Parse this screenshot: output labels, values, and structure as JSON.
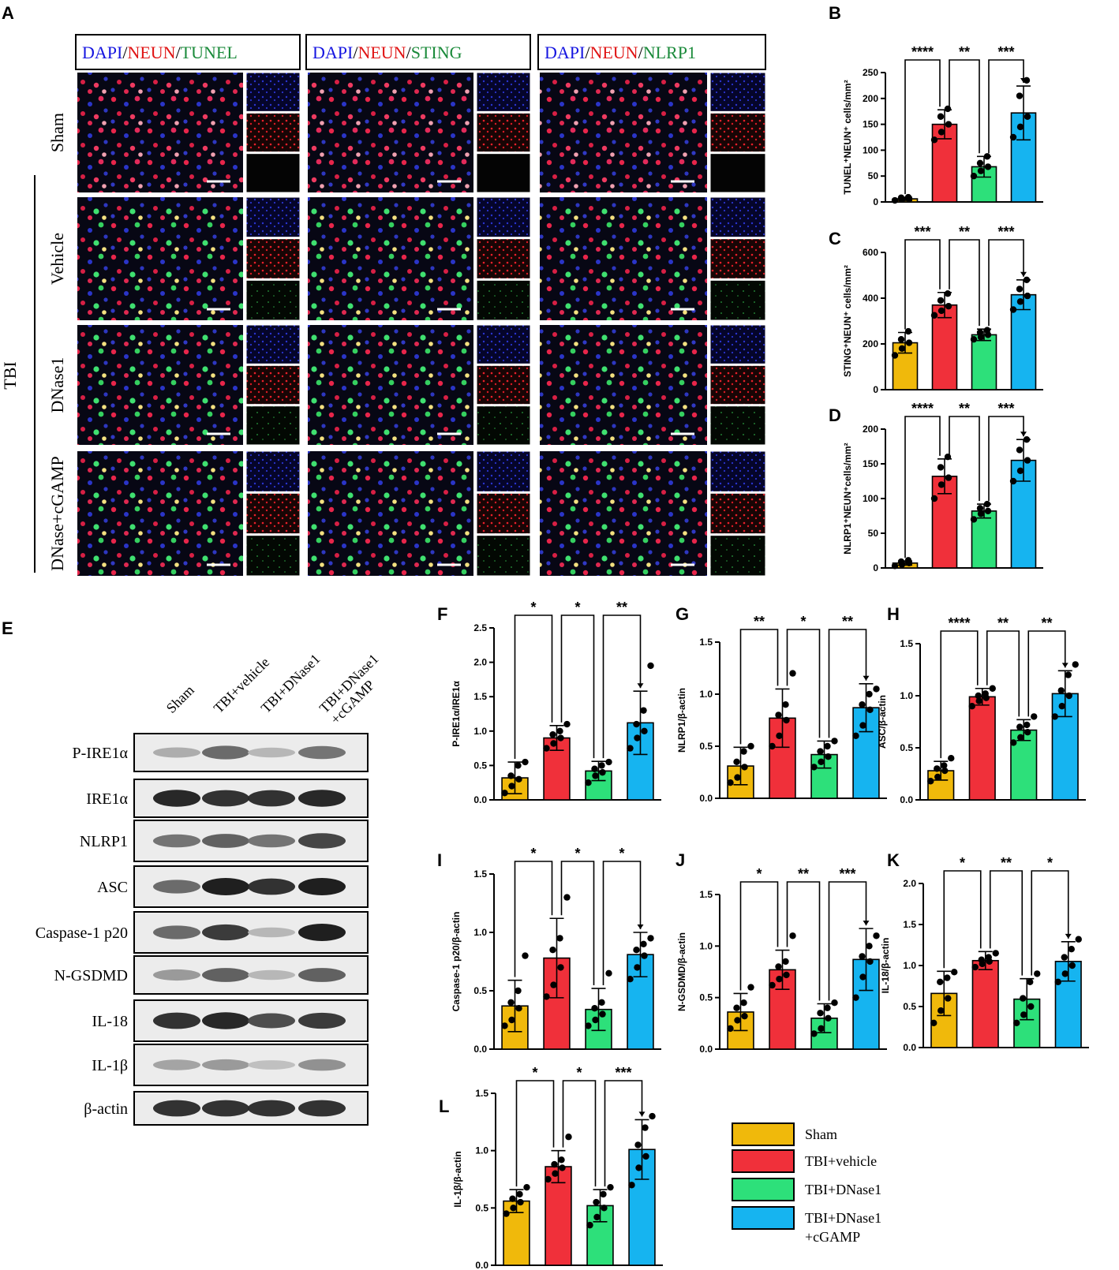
{
  "colors": {
    "sham": "#F0B90B",
    "tbi_vehicle": "#F0303A",
    "tbi_dnase1": "#2DE07A",
    "tbi_dnase1_cgamp": "#16B4F0"
  },
  "panelA": {
    "label": "A",
    "columns": [
      {
        "parts": [
          "DAPI",
          "/",
          "NEUN",
          "/",
          "TUNEL"
        ],
        "colors": [
          "#1515e0",
          "#000",
          "#e01515",
          "#000",
          "#1a8a3a"
        ]
      },
      {
        "parts": [
          "DAPI",
          "/",
          "NEUN",
          "/",
          "STING"
        ],
        "colors": [
          "#1515e0",
          "#000",
          "#e01515",
          "#000",
          "#1a8a3a"
        ]
      },
      {
        "parts": [
          "DAPI",
          "/",
          "NEUN",
          "/",
          "NLRP1"
        ],
        "colors": [
          "#1515e0",
          "#000",
          "#e01515",
          "#000",
          "#1a8a3a"
        ]
      }
    ],
    "rows": [
      "Sham",
      "Vehicle",
      "DNase1",
      "DNase+cGAMP"
    ],
    "tbi_label": "TBI"
  },
  "panelE": {
    "label": "E",
    "lanes": [
      "Sham",
      "TBI+vehicle",
      "TBI+DNase1",
      "TBI+DNase1\n+cGAMP"
    ],
    "bands": [
      "P-IRE1α",
      "IRE1α",
      "NLRP1",
      "ASC",
      "Caspase-1 p20",
      "N-GSDMD",
      "IL-18",
      "IL-1β",
      "β-actin"
    ],
    "intensity": [
      [
        0.25,
        0.6,
        0.2,
        0.55
      ],
      [
        0.95,
        0.9,
        0.9,
        0.95
      ],
      [
        0.55,
        0.65,
        0.55,
        0.8
      ],
      [
        0.6,
        1.0,
        0.9,
        1.0
      ],
      [
        0.6,
        0.85,
        0.2,
        1.0
      ],
      [
        0.35,
        0.65,
        0.2,
        0.65
      ],
      [
        0.9,
        0.95,
        0.75,
        0.85
      ],
      [
        0.3,
        0.35,
        0.15,
        0.4
      ],
      [
        0.9,
        0.9,
        0.9,
        0.9
      ]
    ]
  },
  "legend": {
    "items": [
      "Sham",
      "TBI+vehicle",
      "TBI+DNase1",
      "TBI+DNase1\n+cGAMP"
    ]
  },
  "chart_data": [
    {
      "id": "B",
      "type": "bar",
      "ylabel": "TUNEL⁺NEUN⁺ cells/mm²",
      "ylim": [
        0,
        250
      ],
      "ticks": [
        0,
        50,
        100,
        150,
        200,
        250
      ],
      "tick_labels": [
        "0",
        "50",
        "100",
        "150",
        "200",
        "250"
      ],
      "values": [
        6,
        150,
        68,
        172
      ],
      "sd": [
        3,
        28,
        20,
        52
      ],
      "points": [
        [
          3,
          5,
          6,
          8,
          9
        ],
        [
          120,
          135,
          150,
          165,
          180
        ],
        [
          50,
          60,
          68,
          75,
          88
        ],
        [
          125,
          145,
          165,
          205,
          235
        ]
      ],
      "comparisons": [
        {
          "pair": [
            0,
            1
          ],
          "label": "****"
        },
        {
          "pair": [
            1,
            2
          ],
          "label": "**"
        },
        {
          "pair": [
            2,
            3
          ],
          "label": "***"
        }
      ]
    },
    {
      "id": "C",
      "type": "bar",
      "ylabel": "STING⁺NEUN⁺ cells/mm²",
      "ylim": [
        0,
        600
      ],
      "ticks": [
        0,
        200,
        400,
        600
      ],
      "tick_labels": [
        "0",
        "200",
        "400",
        "600"
      ],
      "values": [
        205,
        370,
        240,
        415
      ],
      "sd": [
        45,
        55,
        25,
        65
      ],
      "points": [
        [
          150,
          180,
          205,
          220,
          255
        ],
        [
          325,
          345,
          365,
          390,
          420
        ],
        [
          220,
          230,
          240,
          250,
          260
        ],
        [
          350,
          385,
          410,
          440,
          480
        ]
      ],
      "comparisons": [
        {
          "pair": [
            0,
            1
          ],
          "label": "***"
        },
        {
          "pair": [
            1,
            2
          ],
          "label": "**"
        },
        {
          "pair": [
            2,
            3
          ],
          "label": "***"
        }
      ]
    },
    {
      "id": "D",
      "type": "bar",
      "ylabel": "NLRP1⁺NEUN⁺cells/mm²",
      "ylim": [
        0,
        200
      ],
      "ticks": [
        0,
        50,
        100,
        150,
        200
      ],
      "tick_labels": [
        "0",
        "50",
        "100",
        "150",
        "200"
      ],
      "values": [
        7,
        132,
        82,
        155
      ],
      "sd": [
        3,
        25,
        10,
        30
      ],
      "points": [
        [
          3,
          5,
          7,
          9,
          11
        ],
        [
          100,
          120,
          130,
          145,
          160
        ],
        [
          70,
          78,
          82,
          86,
          92
        ],
        [
          125,
          140,
          155,
          170,
          185
        ]
      ],
      "comparisons": [
        {
          "pair": [
            0,
            1
          ],
          "label": "****"
        },
        {
          "pair": [
            1,
            2
          ],
          "label": "**"
        },
        {
          "pair": [
            2,
            3
          ],
          "label": "***"
        }
      ]
    },
    {
      "id": "F",
      "type": "bar",
      "ylabel": "P-IRE1α/IRE1α",
      "ylim": [
        0,
        2.5
      ],
      "ticks": [
        0,
        0.5,
        1,
        1.5,
        2,
        2.5
      ],
      "tick_labels": [
        "0.0",
        "0.5",
        "1.0",
        "1.5",
        "2.0",
        "2.5"
      ],
      "values": [
        0.32,
        0.9,
        0.42,
        1.12
      ],
      "sd": [
        0.23,
        0.18,
        0.14,
        0.46
      ],
      "points": [
        [
          0.1,
          0.2,
          0.3,
          0.35,
          0.5,
          0.55
        ],
        [
          0.75,
          0.82,
          0.9,
          0.95,
          1.0,
          1.1
        ],
        [
          0.25,
          0.35,
          0.4,
          0.45,
          0.5,
          0.55
        ],
        [
          0.75,
          0.9,
          1.0,
          1.1,
          1.3,
          1.95
        ]
      ],
      "comparisons": [
        {
          "pair": [
            0,
            1
          ],
          "label": "*"
        },
        {
          "pair": [
            1,
            2
          ],
          "label": "*"
        },
        {
          "pair": [
            2,
            3
          ],
          "label": "**"
        }
      ]
    },
    {
      "id": "G",
      "type": "bar",
      "ylabel": "NLRP1/β-actin",
      "ylim": [
        0,
        1.5
      ],
      "ticks": [
        0,
        0.5,
        1,
        1.5
      ],
      "tick_labels": [
        "0.0",
        "0.5",
        "1.0",
        "1.5"
      ],
      "values": [
        0.31,
        0.77,
        0.42,
        0.87
      ],
      "sd": [
        0.18,
        0.28,
        0.13,
        0.23
      ],
      "points": [
        [
          0.15,
          0.2,
          0.3,
          0.35,
          0.45,
          0.5
        ],
        [
          0.5,
          0.6,
          0.75,
          0.8,
          0.9,
          1.2
        ],
        [
          0.3,
          0.35,
          0.4,
          0.45,
          0.5,
          0.55
        ],
        [
          0.6,
          0.7,
          0.85,
          0.9,
          1.0,
          1.05
        ]
      ],
      "comparisons": [
        {
          "pair": [
            0,
            1
          ],
          "label": "**"
        },
        {
          "pair": [
            1,
            2
          ],
          "label": "*"
        },
        {
          "pair": [
            2,
            3
          ],
          "label": "**"
        }
      ]
    },
    {
      "id": "H",
      "type": "bar",
      "ylabel": "ASC/β-actin",
      "ylim": [
        0,
        1.5
      ],
      "ticks": [
        0,
        0.5,
        1,
        1.5
      ],
      "tick_labels": [
        "0.0",
        "0.5",
        "1.0",
        "1.5"
      ],
      "values": [
        0.28,
        0.99,
        0.67,
        1.02
      ],
      "sd": [
        0.09,
        0.08,
        0.1,
        0.22
      ],
      "points": [
        [
          0.18,
          0.22,
          0.28,
          0.3,
          0.33,
          0.4
        ],
        [
          0.9,
          0.95,
          0.98,
          1.0,
          1.02,
          1.07
        ],
        [
          0.55,
          0.6,
          0.65,
          0.7,
          0.72,
          0.8
        ],
        [
          0.8,
          0.9,
          1.0,
          1.05,
          1.2,
          1.3
        ]
      ],
      "comparisons": [
        {
          "pair": [
            0,
            1
          ],
          "label": "****"
        },
        {
          "pair": [
            1,
            2
          ],
          "label": "**"
        },
        {
          "pair": [
            2,
            3
          ],
          "label": "**"
        }
      ]
    },
    {
      "id": "I",
      "type": "bar",
      "ylabel": "Caspase-1 p20/β-actin",
      "ylim": [
        0,
        1.5
      ],
      "ticks": [
        0,
        0.5,
        1,
        1.5
      ],
      "tick_labels": [
        "0.0",
        "0.5",
        "1.0",
        "1.5"
      ],
      "values": [
        0.37,
        0.78,
        0.34,
        0.81
      ],
      "sd": [
        0.22,
        0.34,
        0.18,
        0.19
      ],
      "points": [
        [
          0.2,
          0.25,
          0.35,
          0.4,
          0.5,
          0.8
        ],
        [
          0.45,
          0.55,
          0.7,
          0.85,
          0.95,
          1.3
        ],
        [
          0.2,
          0.25,
          0.3,
          0.35,
          0.4,
          0.65
        ],
        [
          0.6,
          0.7,
          0.8,
          0.85,
          0.9,
          0.95
        ]
      ],
      "comparisons": [
        {
          "pair": [
            0,
            1
          ],
          "label": "*"
        },
        {
          "pair": [
            1,
            2
          ],
          "label": "*"
        },
        {
          "pair": [
            2,
            3
          ],
          "label": "*"
        }
      ]
    },
    {
      "id": "J",
      "type": "bar",
      "ylabel": "N-GSDMD/β-actin",
      "ylim": [
        0,
        1.5
      ],
      "ticks": [
        0,
        0.5,
        1,
        1.5
      ],
      "tick_labels": [
        "0.0",
        "0.5",
        "1.0",
        "1.5"
      ],
      "values": [
        0.36,
        0.77,
        0.3,
        0.87
      ],
      "sd": [
        0.18,
        0.19,
        0.14,
        0.3
      ],
      "points": [
        [
          0.2,
          0.28,
          0.32,
          0.4,
          0.45,
          0.6
        ],
        [
          0.62,
          0.68,
          0.72,
          0.8,
          0.85,
          1.1
        ],
        [
          0.15,
          0.2,
          0.3,
          0.35,
          0.4,
          0.45
        ],
        [
          0.5,
          0.7,
          0.85,
          0.9,
          1.0,
          1.1
        ]
      ],
      "comparisons": [
        {
          "pair": [
            0,
            1
          ],
          "label": "*"
        },
        {
          "pair": [
            1,
            2
          ],
          "label": "**"
        },
        {
          "pair": [
            2,
            3
          ],
          "label": "***"
        }
      ]
    },
    {
      "id": "K",
      "type": "bar",
      "ylabel": "IL-18/β-actin",
      "ylim": [
        0,
        2
      ],
      "ticks": [
        0,
        0.5,
        1,
        1.5,
        2
      ],
      "tick_labels": [
        "0.0",
        "0.5",
        "1.0",
        "1.5",
        "2.0"
      ],
      "values": [
        0.66,
        1.06,
        0.59,
        1.05
      ],
      "sd": [
        0.27,
        0.11,
        0.25,
        0.24
      ],
      "points": [
        [
          0.3,
          0.45,
          0.6,
          0.8,
          0.85,
          0.92
        ],
        [
          0.98,
          1.02,
          1.05,
          1.07,
          1.1,
          1.15
        ],
        [
          0.3,
          0.4,
          0.5,
          0.6,
          0.8,
          0.9
        ],
        [
          0.8,
          0.9,
          1.0,
          1.1,
          1.2,
          1.32
        ]
      ],
      "comparisons": [
        {
          "pair": [
            0,
            1
          ],
          "label": "*"
        },
        {
          "pair": [
            1,
            2
          ],
          "label": "**"
        },
        {
          "pair": [
            2,
            3
          ],
          "label": "*"
        }
      ]
    },
    {
      "id": "L",
      "type": "bar",
      "ylabel": "IL-1β/β-actin",
      "ylim": [
        0,
        1.5
      ],
      "ticks": [
        0,
        0.5,
        1,
        1.5
      ],
      "tick_labels": [
        "0.0",
        "0.5",
        "1.0",
        "1.5"
      ],
      "values": [
        0.56,
        0.86,
        0.52,
        1.01
      ],
      "sd": [
        0.1,
        0.14,
        0.14,
        0.26
      ],
      "points": [
        [
          0.45,
          0.5,
          0.55,
          0.58,
          0.62,
          0.68
        ],
        [
          0.75,
          0.8,
          0.85,
          0.88,
          0.92,
          1.12
        ],
        [
          0.35,
          0.42,
          0.5,
          0.55,
          0.62,
          0.68
        ],
        [
          0.7,
          0.85,
          0.95,
          1.05,
          1.2,
          1.3
        ]
      ],
      "comparisons": [
        {
          "pair": [
            0,
            1
          ],
          "label": "*"
        },
        {
          "pair": [
            1,
            2
          ],
          "label": "*"
        },
        {
          "pair": [
            2,
            3
          ],
          "label": "***"
        }
      ]
    }
  ]
}
